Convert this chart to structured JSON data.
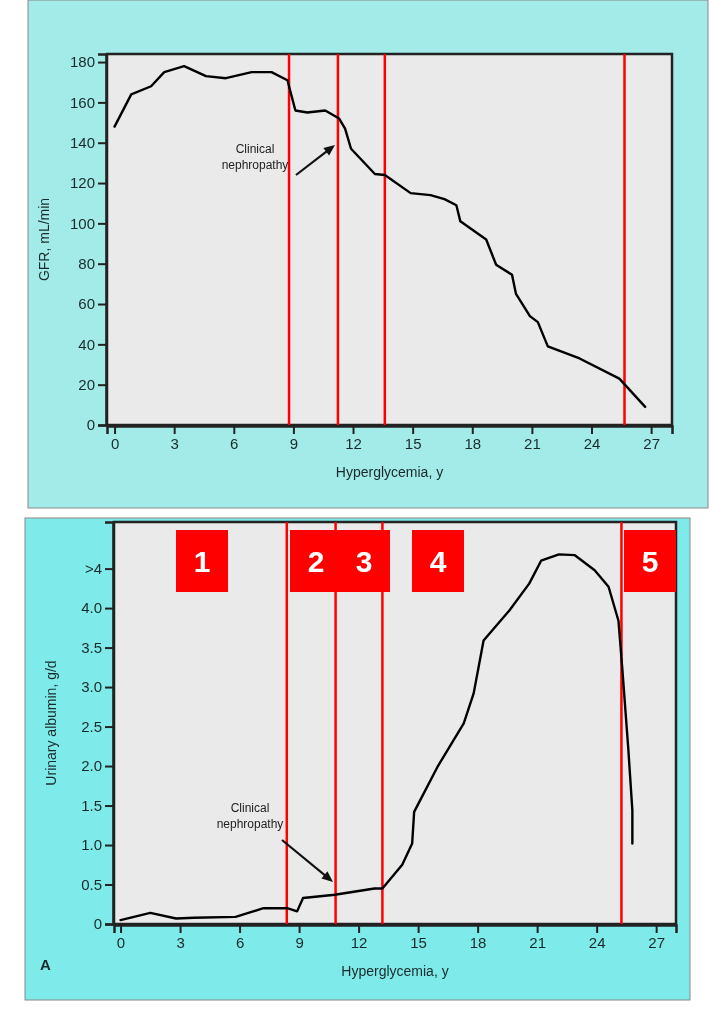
{
  "chart_data": [
    {
      "type": "line",
      "xlabel": "Hyperglycemia, y",
      "ylabel": "GFR, mL/min",
      "xlim": [
        -0.38,
        28.05
      ],
      "ylim": [
        0,
        184
      ],
      "xticks": [
        0,
        3,
        6,
        9,
        12,
        15,
        18,
        21,
        24,
        27
      ],
      "yticks": [
        0,
        20,
        40,
        60,
        80,
        100,
        120,
        140,
        160,
        180
      ],
      "series": [
        {
          "color": "#000000",
          "x": [
            0,
            0.84,
            1.84,
            2.5,
            3.5,
            4.6,
            5.6,
            6.9,
            7.9,
            8.7,
            9.1,
            9.7,
            10.6,
            11.3,
            11.6,
            11.9,
            13.1,
            13.6,
            14.9,
            15.9,
            16.6,
            17.2,
            17.4,
            18.7,
            19.2,
            20.0,
            20.2,
            20.9,
            21.3,
            21.8,
            23.4,
            25.4,
            26.7
          ],
          "values": [
            148,
            164,
            168,
            175,
            178,
            173,
            172,
            175,
            175,
            171,
            156,
            155,
            156,
            152,
            147,
            137,
            124.5,
            124,
            115,
            114,
            112,
            109,
            101,
            92,
            79.5,
            74.5,
            65,
            54,
            51,
            39,
            33,
            23,
            9
          ]
        }
      ],
      "ref_lines": [
        {
          "axis": "x",
          "value": 8.78,
          "color": "#ff0000"
        },
        {
          "axis": "x",
          "value": 11.24,
          "color": "#ff0000"
        },
        {
          "axis": "x",
          "value": 13.6,
          "color": "#ff0000"
        },
        {
          "axis": "x",
          "value": 25.66,
          "color": "#ff0000"
        }
      ],
      "annotations": [
        "Clinical nephropathy"
      ]
    },
    {
      "type": "line",
      "xlabel": "Hyperglycemia, y",
      "ylabel": "Urinary albumin, g/d",
      "xlim": [
        -0.33,
        28
      ],
      "ylim": [
        0,
        5.09
      ],
      "xticks": [
        0,
        3,
        6,
        9,
        12,
        15,
        18,
        21,
        24,
        27
      ],
      "yticks": [
        {
          "value": 0,
          "label": "0"
        },
        {
          "value": 0.5,
          "label": "0.5"
        },
        {
          "value": 1,
          "label": "1.0"
        },
        {
          "value": 1.5,
          "label": "1.5"
        },
        {
          "value": 2,
          "label": "2.0"
        },
        {
          "value": 2.5,
          "label": "2.5"
        },
        {
          "value": 3,
          "label": "3.0"
        },
        {
          "value": 3.5,
          "label": "3.5"
        },
        {
          "value": 4,
          "label": "4.0"
        },
        {
          "value": 4.5,
          "label": ">4"
        }
      ],
      "series": [
        {
          "color": "#000000",
          "x": [
            0,
            1.5,
            2.8,
            3.7,
            5.8,
            7.2,
            8.4,
            8.9,
            9.2,
            10.8,
            12.8,
            13.2,
            14.2,
            14.7,
            14.8,
            16.0,
            17.3,
            17.8,
            18.3,
            19.6,
            20.6,
            21.2,
            22.1,
            22.9,
            23.9,
            24.6,
            25.1,
            25.3,
            25.6,
            25.8,
            25.8
          ],
          "values": [
            0.05,
            0.14,
            0.07,
            0.08,
            0.09,
            0.2,
            0.2,
            0.16,
            0.33,
            0.37,
            0.45,
            0.45,
            0.75,
            1.02,
            1.42,
            2.0,
            2.54,
            2.92,
            3.59,
            3.97,
            4.31,
            4.6,
            4.68,
            4.67,
            4.48,
            4.27,
            3.84,
            3.21,
            2.2,
            1.44,
            1.02
          ]
        }
      ],
      "ref_lines": [
        {
          "axis": "x",
          "value": 8.38,
          "color": "#ff0000"
        },
        {
          "axis": "x",
          "value": 10.84,
          "color": "#ff0000"
        },
        {
          "axis": "x",
          "value": 13.2,
          "color": "#ff0000"
        },
        {
          "axis": "x",
          "value": 25.25,
          "color": "#ff0000"
        }
      ],
      "annotations": [
        "Clinical nephropathy",
        "1",
        "2",
        "3",
        "4",
        "5",
        "A"
      ]
    }
  ]
}
